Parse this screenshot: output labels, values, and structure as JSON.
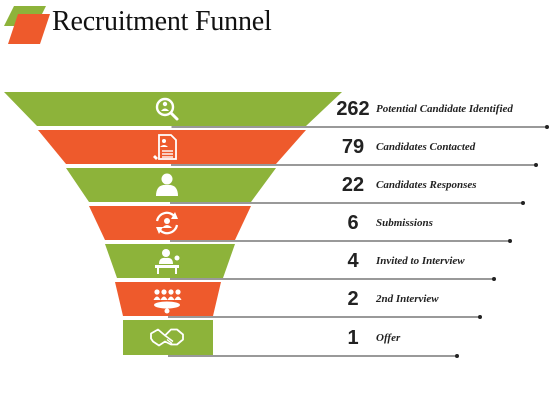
{
  "title": "Recruitment Funnel",
  "colors": {
    "green": "#8db33a",
    "orange": "#ee5a2c",
    "line": "#333333",
    "icon": "#ffffff"
  },
  "stages": [
    {
      "value": "262",
      "label": "Potential Candidate Identified",
      "icon": "magnifier-person-icon",
      "color": "green"
    },
    {
      "value": "79",
      "label": "Candidates Contacted",
      "icon": "resume-document-icon",
      "color": "orange"
    },
    {
      "value": "22",
      "label": "Candidates Responses",
      "icon": "candidate-person-icon",
      "color": "green"
    },
    {
      "value": "6",
      "label": "Submissions",
      "icon": "person-cycle-icon",
      "color": "orange"
    },
    {
      "value": "4",
      "label": "Invited to Interview",
      "icon": "interview-desk-icon",
      "color": "green"
    },
    {
      "value": "2",
      "label": "2nd Interview",
      "icon": "panel-meeting-icon",
      "color": "orange"
    },
    {
      "value": "1",
      "label": "Offer",
      "icon": "handshake-icon",
      "color": "green"
    }
  ]
}
